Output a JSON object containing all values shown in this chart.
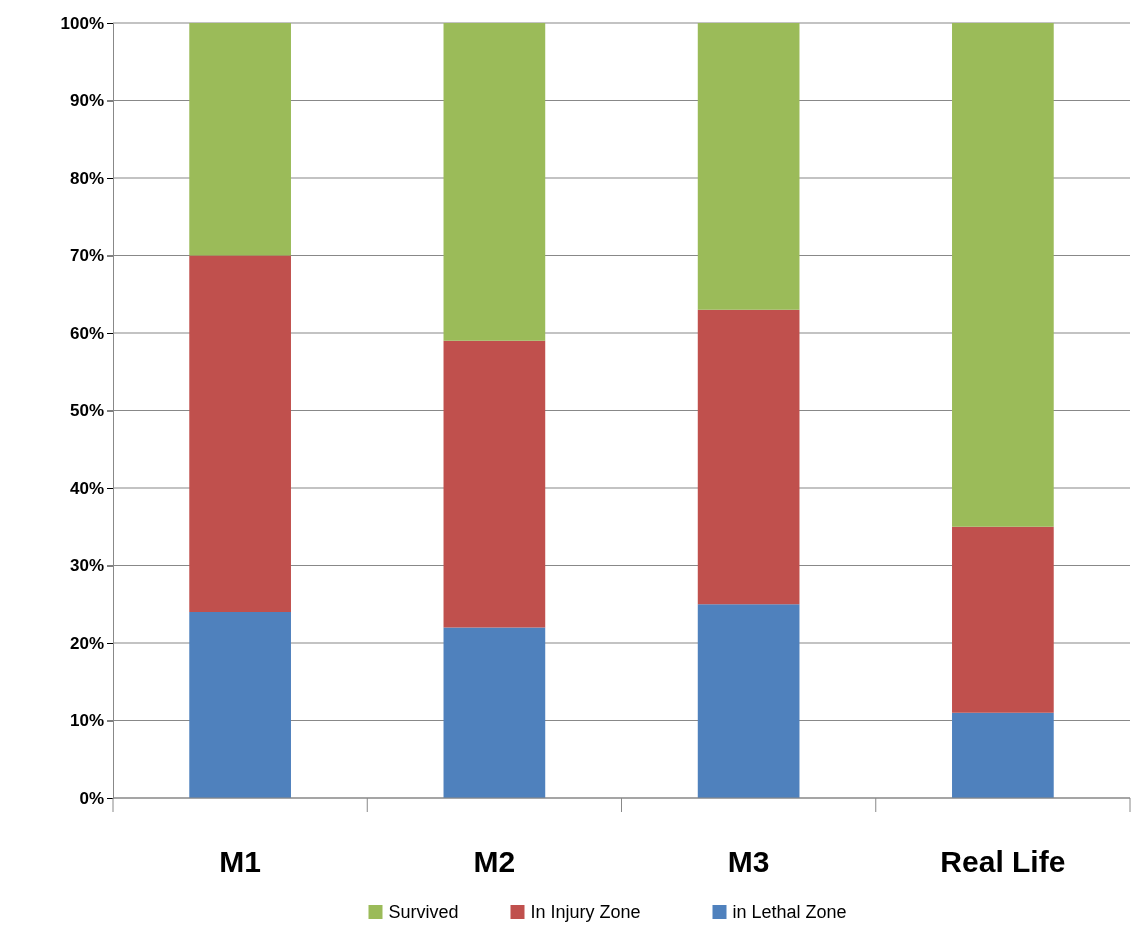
{
  "chart_data": {
    "type": "bar",
    "stacked": true,
    "categories": [
      "M1",
      "M2",
      "M3",
      "Real Life"
    ],
    "series": [
      {
        "name": "in Lethal Zone",
        "color": "#4f81bd",
        "values": [
          24,
          22,
          25,
          11
        ]
      },
      {
        "name": "In Injury Zone",
        "color": "#c0504d",
        "values": [
          46,
          37,
          38,
          24
        ]
      },
      {
        "name": "Survived",
        "color": "#9bbb59",
        "values": [
          30,
          41,
          37,
          65
        ]
      }
    ],
    "ylim": [
      0,
      100
    ],
    "yticks": [
      {
        "value": 0,
        "label": "0%"
      },
      {
        "value": 10,
        "label": "10%"
      },
      {
        "value": 20,
        "label": "20%"
      },
      {
        "value": 30,
        "label": "30%"
      },
      {
        "value": 40,
        "label": "40%"
      },
      {
        "value": 50,
        "label": "50%"
      },
      {
        "value": 60,
        "label": "60%"
      },
      {
        "value": 70,
        "label": "70%"
      },
      {
        "value": 80,
        "label": "80%"
      },
      {
        "value": 90,
        "label": "90%"
      },
      {
        "value": 100,
        "label": "100%"
      }
    ],
    "grid": "y",
    "legend": "bottom"
  }
}
